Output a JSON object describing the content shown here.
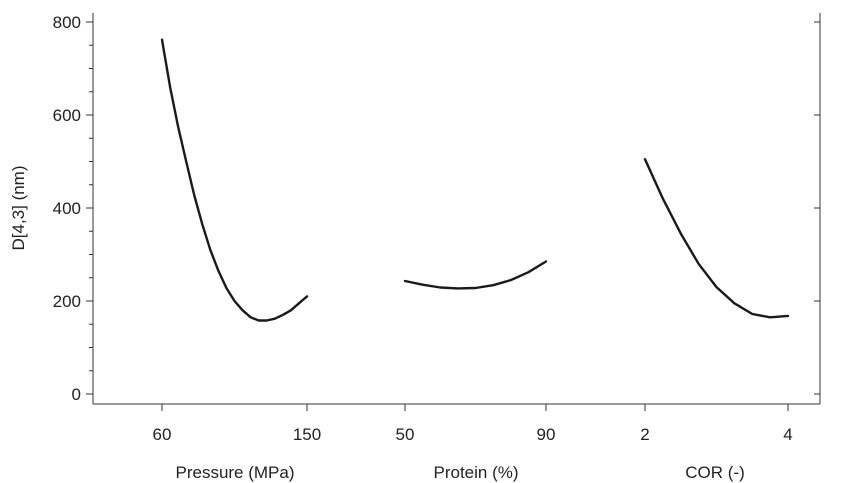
{
  "chart_data": {
    "type": "line",
    "ylabel": "D[4,3] (nm)",
    "ylim": [
      0,
      800
    ],
    "yticks": [
      0,
      200,
      400,
      600,
      800
    ],
    "yticks_labels": [
      "0",
      "200",
      "400",
      "600",
      "800"
    ],
    "grid": false,
    "panels": [
      {
        "xlabel": "Pressure (MPa)",
        "xticks": [
          60,
          150
        ],
        "xticks_labels": [
          "60",
          "150"
        ],
        "x": [
          60,
          65,
          70,
          75,
          80,
          85,
          90,
          95,
          100,
          105,
          110,
          115,
          120,
          125,
          130,
          135,
          140,
          145,
          150
        ],
        "y": [
          762,
          660,
          575,
          500,
          428,
          365,
          310,
          265,
          228,
          200,
          180,
          165,
          158,
          158,
          162,
          170,
          180,
          195,
          210
        ]
      },
      {
        "xlabel": "Protein (%)",
        "xticks": [
          50,
          90
        ],
        "xticks_labels": [
          "50",
          "90"
        ],
        "x": [
          50,
          55,
          60,
          65,
          70,
          75,
          80,
          85,
          90
        ],
        "y": [
          243,
          235,
          229,
          227,
          228,
          234,
          245,
          262,
          285
        ]
      },
      {
        "xlabel": "COR (-)",
        "xticks": [
          2,
          4
        ],
        "xticks_labels": [
          "2",
          "4"
        ],
        "x": [
          2,
          2.25,
          2.5,
          2.75,
          3,
          3.25,
          3.5,
          3.75,
          4
        ],
        "y": [
          505,
          420,
          345,
          280,
          230,
          195,
          172,
          165,
          168
        ]
      }
    ]
  }
}
